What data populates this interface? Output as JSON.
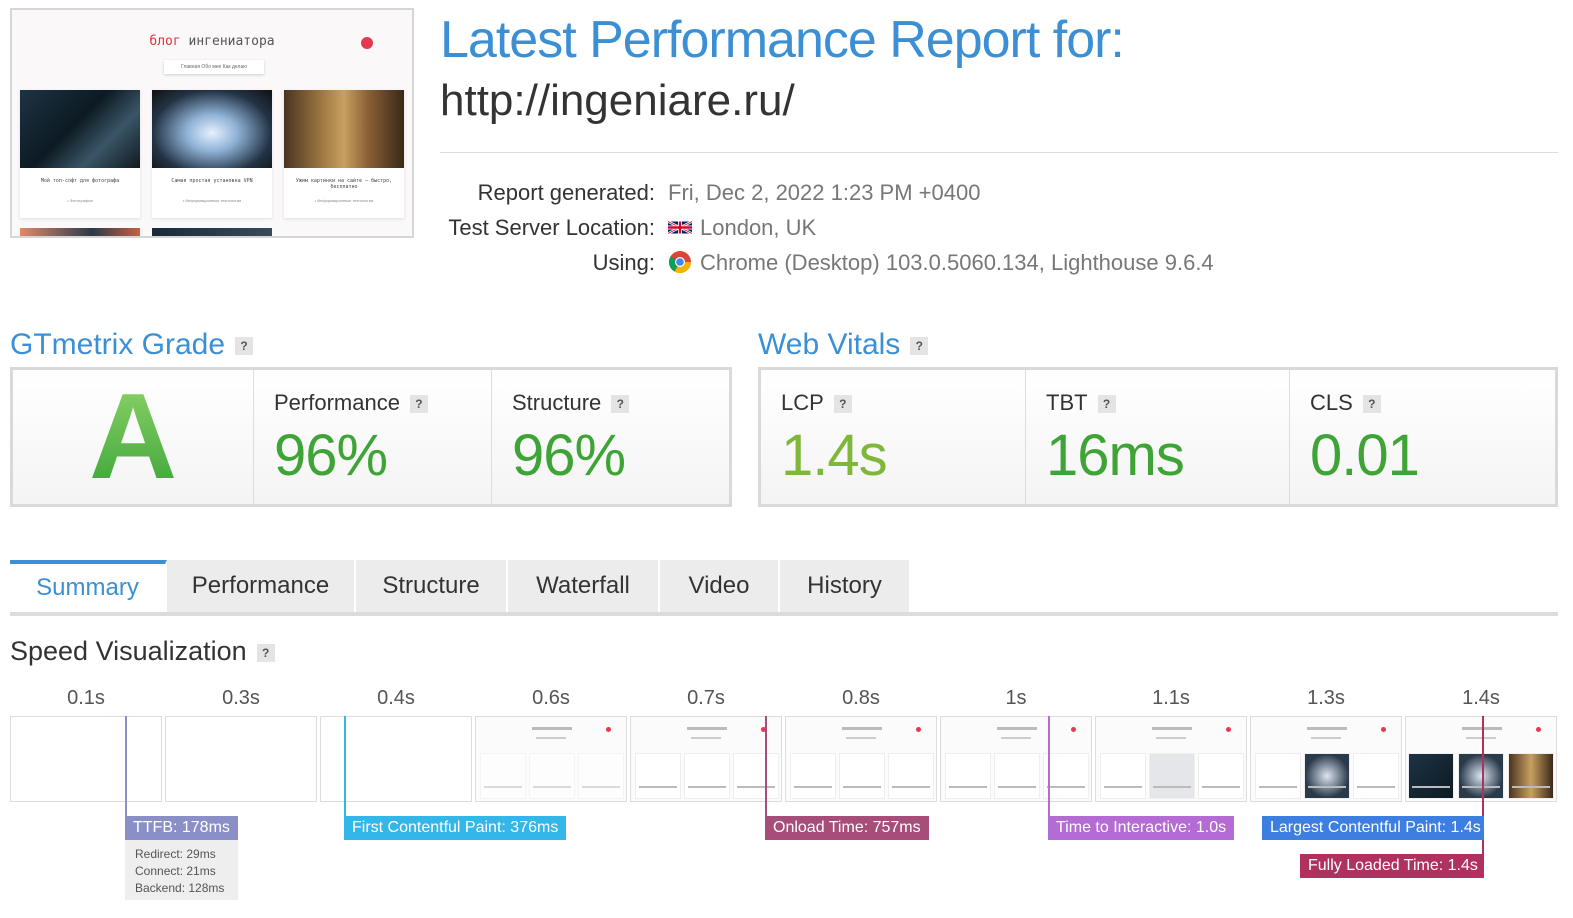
{
  "header": {
    "title": "Latest Performance Report for:",
    "url": "http://ingeniare.ru/"
  },
  "thumbnail": {
    "brand_prefix": "блог",
    "brand_name": " ингениатора",
    "nav": "Главная   Обо мне   Как делаю",
    "cards": [
      {
        "caption": "Мой топ-софт для фотографа",
        "tag": "• Фотография"
      },
      {
        "caption": "Самая простая установка VPN",
        "tag": "• Информационные технологии"
      },
      {
        "caption": "Ужим картинки на сайте – быстро, бесплатно",
        "tag": "• Информационные технологии"
      }
    ]
  },
  "report": {
    "generated_label": "Report generated:",
    "generated_value": "Fri, Dec 2, 2022 1:23 PM +0400",
    "location_label": "Test Server Location:",
    "location_value": "London, UK",
    "using_label": "Using:",
    "using_value": "Chrome (Desktop) 103.0.5060.134, Lighthouse 9.6.4"
  },
  "grade": {
    "heading": "GTmetrix Grade",
    "help": "?",
    "letter": "A",
    "performance_label": "Performance",
    "performance_value": "96%",
    "structure_label": "Structure",
    "structure_value": "96%"
  },
  "vitals": {
    "heading": "Web Vitals",
    "help": "?",
    "lcp_label": "LCP",
    "lcp_value": "1.4s",
    "tbt_label": "TBT",
    "tbt_value": "16ms",
    "cls_label": "CLS",
    "cls_value": "0.01"
  },
  "tabs": [
    "Summary",
    "Performance",
    "Structure",
    "Waterfall",
    "Video",
    "History"
  ],
  "speed": {
    "heading": "Speed Visualization",
    "help": "?",
    "frame_times": [
      "0.1s",
      "0.3s",
      "0.4s",
      "0.6s",
      "0.7s",
      "0.8s",
      "1s",
      "1.1s",
      "1.3s",
      "1.4s"
    ],
    "ttfb": "TTFB: 178ms",
    "ttfb_redirect": "Redirect: 29ms",
    "ttfb_connect": "Connect: 21ms",
    "ttfb_backend": "Backend: 128ms",
    "fcp": "First Contentful Paint: 376ms",
    "onload": "Onload Time: 757ms",
    "tti": "Time to Interactive: 1.0s",
    "lcp": "Largest Contentful Paint: 1.4s",
    "fully_loaded": "Fully Loaded Time: 1.4s"
  },
  "colors": {
    "accent": "#3b8fd4",
    "grade_green": "#3da435",
    "ttfb": "#8b8fc8",
    "fcp": "#35b6e8",
    "onload": "#a64d79",
    "tti": "#b56bd4",
    "lcp": "#3c7fe0",
    "fully_loaded": "#b03060"
  }
}
